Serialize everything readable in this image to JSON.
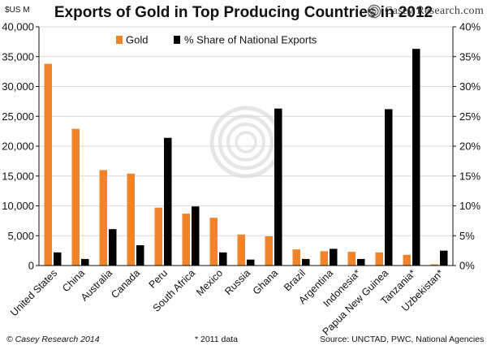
{
  "header": {
    "unit_label": "$US M",
    "brand_name": "Casey Research.com"
  },
  "footer": {
    "copyright": "© Casey Research 2014",
    "note": "* 2011 data",
    "source": "Source: UNCTAD, PWC, National Agencies"
  },
  "colors": {
    "gold": "#f0842a",
    "share": "#000000",
    "watermark": "#e6e6e6"
  },
  "chart_data": {
    "type": "bar",
    "title": "Exports of Gold in Top Producing Countries in 2012",
    "categories": [
      "United States",
      "China",
      "Australia",
      "Canada",
      "Peru",
      "South Africa",
      "Mexico",
      "Russia",
      "Ghana",
      "Brazil",
      "Argentina",
      "Indonesia*",
      "Papua New Guinea",
      "Tanzania*",
      "Uzbekistan*"
    ],
    "series": [
      {
        "name": "Gold",
        "axis": "left",
        "values": [
          33800,
          22900,
          16000,
          15400,
          9700,
          8700,
          8000,
          5200,
          4900,
          2700,
          2400,
          2300,
          2200,
          1800,
          200
        ]
      },
      {
        "name": "% Share of National Exports",
        "axis": "right",
        "values": [
          2.2,
          1.1,
          6.1,
          3.4,
          21.4,
          9.9,
          2.2,
          1.0,
          26.3,
          1.1,
          2.8,
          1.1,
          26.2,
          36.3,
          2.5
        ]
      }
    ],
    "yleft": {
      "lim": [
        0,
        40000
      ],
      "ticks": [
        "0",
        "5,000",
        "10,000",
        "15,000",
        "20,000",
        "25,000",
        "30,000",
        "35,000",
        "40,000"
      ]
    },
    "yright": {
      "lim": [
        0,
        40
      ],
      "ticks": [
        "0%",
        "5%",
        "10%",
        "15%",
        "20%",
        "25%",
        "30%",
        "35%",
        "40%"
      ]
    },
    "legend": [
      "Gold",
      "% Share of National Exports"
    ]
  }
}
